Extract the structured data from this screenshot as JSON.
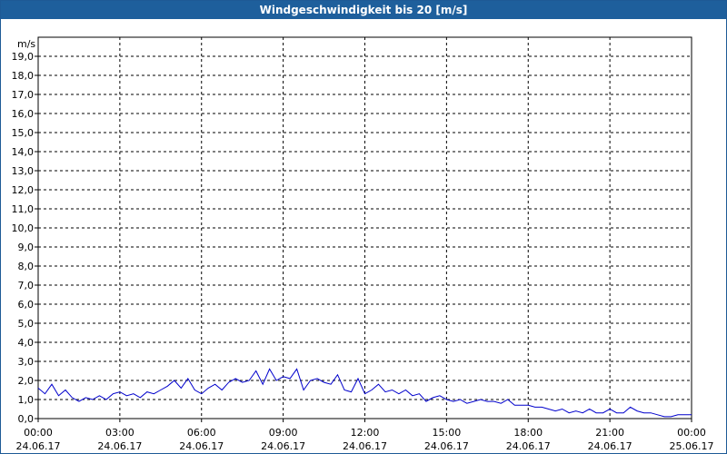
{
  "header": {
    "title": "Windgeschwindigkeit bis 20 [m/s]"
  },
  "colors": {
    "title_bar": "#1e5f9c",
    "series": "#0000cc",
    "grid": "#000000"
  },
  "chart_data": {
    "type": "line",
    "title": "Windgeschwindigkeit bis 20 [m/s]",
    "ylabel": "m/s",
    "xlabel": "",
    "ylim": [
      0,
      20
    ],
    "y_ticks": [
      "0,0",
      "1,0",
      "2,0",
      "3,0",
      "4,0",
      "5,0",
      "6,0",
      "7,0",
      "8,0",
      "9,0",
      "10,0",
      "11,0",
      "12,0",
      "13,0",
      "14,0",
      "15,0",
      "16,0",
      "17,0",
      "18,0",
      "19,0"
    ],
    "x_ticks": [
      {
        "time": "00:00",
        "date": "24.06.17"
      },
      {
        "time": "03:00",
        "date": "24.06.17"
      },
      {
        "time": "06:00",
        "date": "24.06.17"
      },
      {
        "time": "09:00",
        "date": "24.06.17"
      },
      {
        "time": "12:00",
        "date": "24.06.17"
      },
      {
        "time": "15:00",
        "date": "24.06.17"
      },
      {
        "time": "18:00",
        "date": "24.06.17"
      },
      {
        "time": "21:00",
        "date": "24.06.17"
      },
      {
        "time": "00:00",
        "date": "25.06.17"
      }
    ],
    "xlim_hours": [
      0,
      24
    ],
    "grid": true,
    "series": [
      {
        "x_hours": [
          0,
          0.25,
          0.5,
          0.75,
          1,
          1.25,
          1.5,
          1.75,
          2,
          2.25,
          2.5,
          2.75,
          3,
          3.25,
          3.5,
          3.75,
          4,
          4.25,
          4.5,
          4.75,
          5,
          5.25,
          5.5,
          5.75,
          6,
          6.25,
          6.5,
          6.75,
          7,
          7.25,
          7.5,
          7.75,
          8,
          8.25,
          8.5,
          8.75,
          9,
          9.25,
          9.5,
          9.75,
          10,
          10.25,
          10.5,
          10.75,
          11,
          11.25,
          11.5,
          11.75,
          12,
          12.25,
          12.5,
          12.75,
          13,
          13.25,
          13.5,
          13.75,
          14,
          14.25,
          14.5,
          14.75,
          15,
          15.25,
          15.5,
          15.75,
          16,
          16.25,
          16.5,
          16.75,
          17,
          17.25,
          17.5,
          17.75,
          18,
          18.25,
          18.5,
          18.75,
          19,
          19.25,
          19.5,
          19.75,
          20,
          20.25,
          20.5,
          20.75,
          21,
          21.25,
          21.5,
          21.75,
          22,
          22.25,
          22.5,
          22.75,
          23,
          23.25,
          23.5,
          23.75,
          24
        ],
        "values": [
          1.6,
          1.3,
          1.8,
          1.2,
          1.5,
          1.1,
          0.9,
          1.1,
          1.0,
          1.2,
          1.0,
          1.3,
          1.4,
          1.2,
          1.3,
          1.1,
          1.4,
          1.3,
          1.5,
          1.7,
          2.0,
          1.6,
          2.1,
          1.5,
          1.3,
          1.6,
          1.8,
          1.5,
          1.9,
          2.1,
          1.9,
          2.0,
          2.5,
          1.8,
          2.6,
          2.0,
          2.2,
          2.1,
          2.6,
          1.5,
          2.0,
          2.1,
          1.9,
          1.8,
          2.3,
          1.5,
          1.4,
          2.1,
          1.3,
          1.5,
          1.8,
          1.4,
          1.5,
          1.3,
          1.5,
          1.2,
          1.3,
          0.9,
          1.1,
          1.2,
          1.0,
          0.9,
          1.0,
          0.8,
          0.9,
          1.0,
          0.9,
          0.9,
          0.8,
          1.0,
          0.7,
          0.7,
          0.7,
          0.6,
          0.6,
          0.5,
          0.4,
          0.5,
          0.3,
          0.4,
          0.3,
          0.5,
          0.3,
          0.3,
          0.5,
          0.3,
          0.3,
          0.6,
          0.4,
          0.3,
          0.3,
          0.2,
          0.1,
          0.1,
          0.2,
          0.2,
          0.2
        ]
      }
    ]
  }
}
